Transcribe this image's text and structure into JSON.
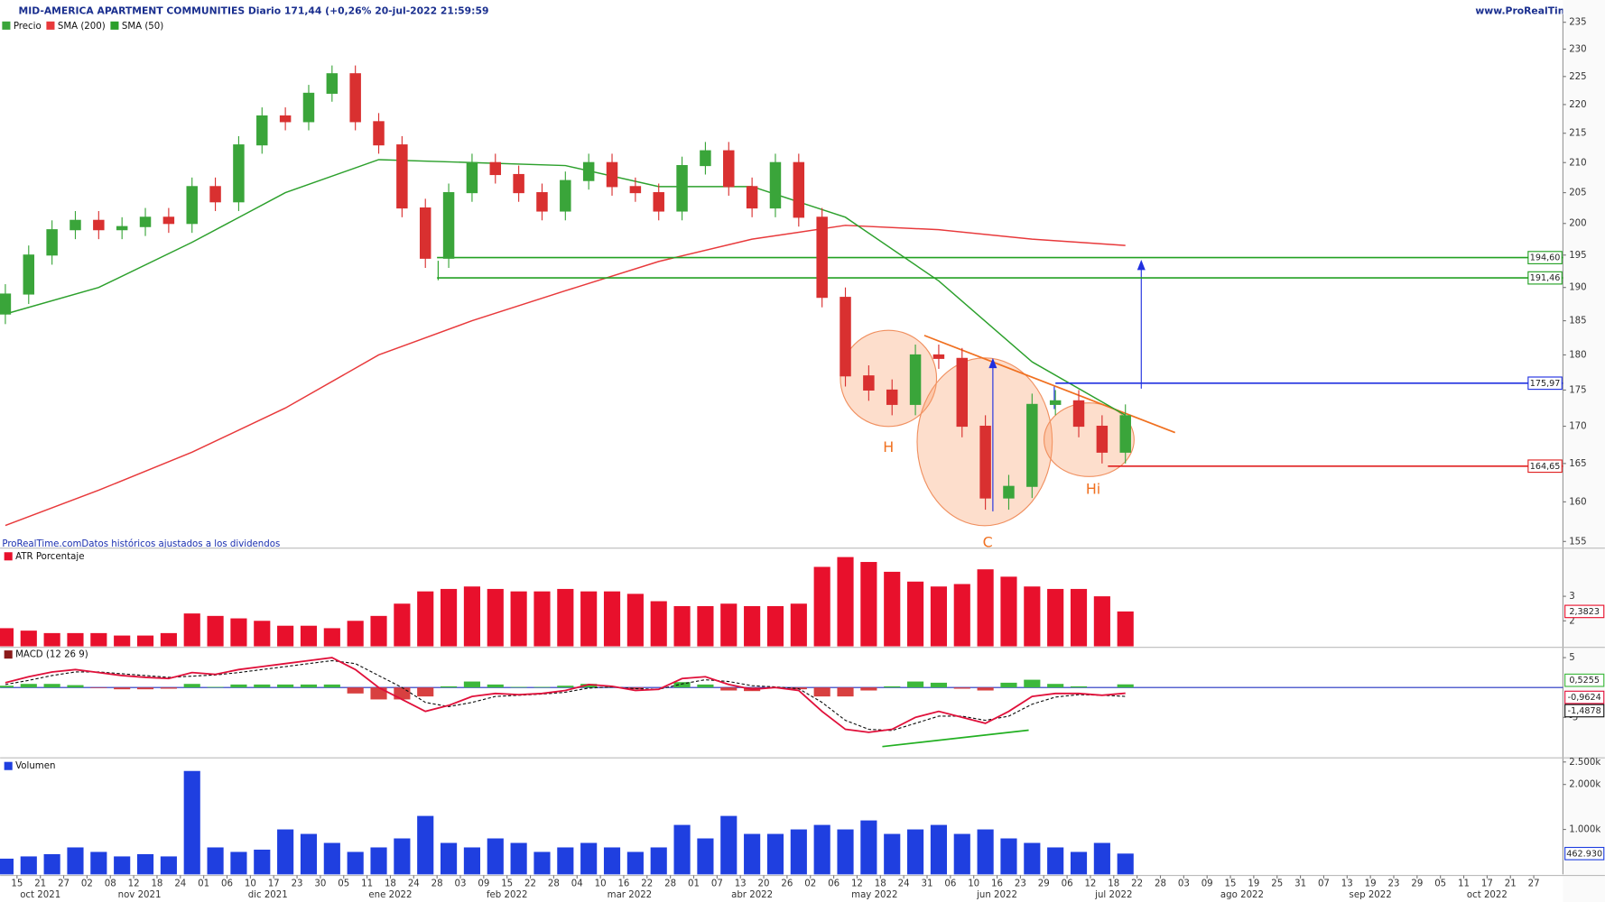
{
  "header": {
    "title": "MID-AMERICA APARTMENT COMMUNITIES Diario 171,44 (+0,26% 20-jul-2022 21:59:59",
    "website": "www.ProRealTime.com"
  },
  "chart_data": [
    {
      "type": "candlestick",
      "price_name": "Precio",
      "price_color": "#3aa53a",
      "up_color": "#3aa53a",
      "down_color": "#d93030",
      "log": true,
      "footnote": "ProRealTime.comDatos históricos ajustados a los dividendos",
      "xlim": [
        -0.9,
        267
      ],
      "ylim": [
        154.3,
        236.5
      ],
      "yticks": [
        155,
        160,
        165,
        170,
        175,
        180,
        185,
        190,
        195,
        200,
        205,
        210,
        215,
        220,
        225,
        230,
        235
      ],
      "x": [
        0,
        4,
        8,
        12,
        16,
        20,
        24,
        28,
        32,
        36,
        40,
        44,
        48,
        52,
        56,
        60,
        64,
        68,
        72,
        76,
        80,
        84,
        88,
        92,
        96,
        100,
        104,
        108,
        112,
        116,
        120,
        124,
        128,
        132,
        136,
        140,
        144,
        148,
        152,
        156,
        160,
        164,
        168,
        172,
        176,
        180,
        184,
        188,
        192
      ],
      "open": [
        186,
        189,
        195,
        199,
        200.5,
        199,
        199.5,
        201,
        200,
        206,
        203.5,
        213,
        218,
        217,
        222,
        225.5,
        217,
        213,
        202.5,
        194.5,
        205,
        210,
        208,
        205,
        202,
        207,
        210,
        206,
        205,
        202,
        209.5,
        212,
        206,
        202.5,
        210,
        201,
        188.5,
        177,
        175,
        173,
        180,
        179.5,
        170,
        160.5,
        162,
        173,
        173.5,
        170,
        166.5
      ],
      "high": [
        190.5,
        196.5,
        200.5,
        202,
        202,
        201,
        202.5,
        202.5,
        207.5,
        207.5,
        214.5,
        219.5,
        219.5,
        223.5,
        227,
        227,
        218.5,
        214.5,
        204,
        206.5,
        211.5,
        211.5,
        209.5,
        206.5,
        208.5,
        211.5,
        211.5,
        207.5,
        206.5,
        211,
        213.5,
        213.5,
        207.5,
        211.5,
        211.5,
        202.5,
        190,
        178.5,
        176.5,
        181.5,
        181.5,
        181,
        171.5,
        163.5,
        174.5,
        175,
        175,
        171.5,
        173
      ],
      "low": [
        184.5,
        187.5,
        193.5,
        197.5,
        197.5,
        197.5,
        198,
        198.5,
        198.5,
        202,
        202,
        211.5,
        215.5,
        215.5,
        220.5,
        215.5,
        211.5,
        201,
        193,
        193,
        203.5,
        206.5,
        203.5,
        200.5,
        200.5,
        205.5,
        204.5,
        203.5,
        200.5,
        200.5,
        208,
        204.5,
        201,
        201,
        199.5,
        187,
        175.5,
        173.5,
        171.5,
        171.5,
        178,
        168.5,
        159,
        159,
        160.5,
        171.5,
        168.5,
        165,
        165
      ],
      "close": [
        189,
        195,
        199,
        200.5,
        199,
        199.5,
        201,
        200,
        206,
        203.5,
        213,
        218,
        217,
        222,
        225.5,
        217,
        213,
        202.5,
        194.5,
        205,
        210,
        208,
        205,
        202,
        207,
        210,
        206,
        205,
        202,
        209.5,
        212,
        206,
        202.5,
        210,
        201,
        188.5,
        177,
        175,
        173,
        180,
        179.5,
        170,
        160.5,
        162,
        173,
        173.5,
        170,
        166.5,
        171.44
      ],
      "series": [
        {
          "name": "SMA (200)",
          "color": "#e8393b",
          "x": [
            0,
            16,
            32,
            48,
            64,
            80,
            96,
            112,
            128,
            144,
            160,
            176,
            192
          ],
          "values": [
            157,
            161.5,
            166.5,
            172.5,
            180,
            185,
            189.5,
            194,
            197.5,
            199.7,
            199,
            197.5,
            196.5
          ]
        },
        {
          "name": "SMA (50)",
          "color": "#2ca02c",
          "x": [
            0,
            16,
            32,
            48,
            64,
            80,
            96,
            112,
            128,
            144,
            160,
            176,
            192
          ],
          "values": [
            186,
            190,
            197,
            205,
            210.5,
            210,
            209.5,
            206,
            206,
            201,
            191,
            179,
            171.5
          ]
        }
      ],
      "levels": [
        {
          "value": 194.6,
          "label": "194,60",
          "color": "#22a022",
          "x_start": 74
        },
        {
          "value": 191.46,
          "label": "191,46",
          "color": "#22a022",
          "x_start": 74
        },
        {
          "value": 175.97,
          "label": "175,97",
          "color": "#2030e0",
          "x_start": 180
        },
        {
          "value": 164.65,
          "label": "164,65",
          "color": "#e02020",
          "x_start": 189
        }
      ],
      "annotations": [
        "H",
        "C",
        "Hi"
      ]
    },
    {
      "type": "bar",
      "title": "ATR Porcentaje",
      "color": "#e8102c",
      "ylim": [
        0.96,
        4.88
      ],
      "yticks": [
        2,
        3
      ],
      "values": [
        1.7,
        1.6,
        1.5,
        1.5,
        1.5,
        1.4,
        1.4,
        1.5,
        2.3,
        2.2,
        2.1,
        2.0,
        1.8,
        1.8,
        1.7,
        2.0,
        2.2,
        2.7,
        3.2,
        3.3,
        3.4,
        3.3,
        3.2,
        3.2,
        3.3,
        3.2,
        3.2,
        3.1,
        2.8,
        2.6,
        2.6,
        2.7,
        2.6,
        2.6,
        2.7,
        4.2,
        4.6,
        4.4,
        4.0,
        3.6,
        3.4,
        3.5,
        4.1,
        3.8,
        3.4,
        3.3,
        3.3,
        3.0,
        2.3823
      ],
      "last_value_label": "2,3823"
    },
    {
      "type": "macd",
      "title": "MACD (12 26 9)",
      "title_color": "#8b1a1a",
      "ylim": [
        -11.6,
        6.55
      ],
      "yticks": [
        -5,
        5
      ],
      "zero_color": "#2030c0",
      "histogram": {
        "up_color": "#3cb83c",
        "down_color": "#d84040",
        "values": [
          0.3,
          0.6,
          0.6,
          0.4,
          -0.1,
          -0.3,
          -0.3,
          -0.2,
          0.6,
          0.1,
          0.5,
          0.5,
          0.5,
          0.5,
          0.5,
          -1.0,
          -2.0,
          -2.0,
          -1.5,
          0.2,
          1.0,
          0.5,
          0.1,
          0.1,
          0.3,
          0.6,
          0.1,
          -0.3,
          0.0,
          0.9,
          0.5,
          -0.5,
          -0.6,
          -0.1,
          -0.3,
          -1.5,
          -1.5,
          -0.5,
          0.2,
          1.0,
          0.8,
          -0.2,
          -0.5,
          0.8,
          1.3,
          0.6,
          0.2,
          0.0,
          0.5255
        ],
        "last_value_label": "0,5255"
      },
      "macd": {
        "color": "#e0103a",
        "values": [
          0.8,
          1.8,
          2.6,
          3.0,
          2.5,
          2.0,
          1.7,
          1.5,
          2.5,
          2.2,
          3.0,
          3.5,
          4.0,
          4.5,
          5.0,
          3.0,
          0,
          -2,
          -4,
          -3,
          -1.5,
          -1,
          -1.2,
          -1,
          -0.5,
          0.5,
          0.2,
          -0.5,
          -0.3,
          1.5,
          1.8,
          0.5,
          -0.3,
          0,
          -0.5,
          -4,
          -7,
          -7.5,
          -7,
          -5,
          -4,
          -5,
          -6,
          -4,
          -1.5,
          -1,
          -1,
          -1.3,
          -0.9624
        ],
        "last_value_label": "-0,9624"
      },
      "signal": {
        "color": "#111111",
        "values": [
          0.5,
          1.2,
          2.0,
          2.6,
          2.6,
          2.3,
          2.0,
          1.7,
          1.9,
          2.1,
          2.5,
          3.0,
          3.5,
          4.0,
          4.5,
          4.0,
          2.0,
          0,
          -2.5,
          -3.2,
          -2.5,
          -1.5,
          -1.3,
          -1.1,
          -0.8,
          -0.1,
          0.1,
          -0.2,
          -0.3,
          0.6,
          1.3,
          1.0,
          0.3,
          0.1,
          -0.2,
          -2.5,
          -5.5,
          -7.0,
          -7.2,
          -6.0,
          -4.8,
          -4.8,
          -5.5,
          -4.8,
          -2.8,
          -1.6,
          -1.2,
          -1.3,
          -1.4878
        ],
        "last_value_label": "-1,4878"
      }
    },
    {
      "type": "bar",
      "title": "Volumen",
      "color": "#1f3fe0",
      "ylim": [
        0,
        2570000
      ],
      "yticks": [
        {
          "value": 1000000,
          "label": "1.000k"
        },
        {
          "value": 2000000,
          "label": "2.000k"
        },
        {
          "value": 2500000,
          "label": "2.500k"
        }
      ],
      "values": [
        350000,
        400000,
        450000,
        600000,
        500000,
        400000,
        450000,
        400000,
        2300000,
        600000,
        500000,
        550000,
        1000000,
        900000,
        700000,
        500000,
        600000,
        800000,
        1300000,
        700000,
        600000,
        800000,
        700000,
        500000,
        600000,
        700000,
        600000,
        500000,
        600000,
        1100000,
        800000,
        1300000,
        900000,
        900000,
        1000000,
        1100000,
        1000000,
        1200000,
        900000,
        1000000,
        1100000,
        900000,
        1000000,
        800000,
        700000,
        600000,
        500000,
        700000,
        462930
      ],
      "last_value_label": "462.930",
      "xticks": [
        {
          "value": 2,
          "label": "15"
        },
        {
          "value": 6,
          "label": "21"
        },
        {
          "value": 10,
          "label": "27"
        },
        {
          "value": 14,
          "label": "02"
        },
        {
          "value": 18,
          "label": "08"
        },
        {
          "value": 22,
          "label": "12"
        },
        {
          "value": 26,
          "label": "18"
        },
        {
          "value": 30,
          "label": "24"
        },
        {
          "value": 34,
          "label": "01"
        },
        {
          "value": 38,
          "label": "06"
        },
        {
          "value": 42,
          "label": "10"
        },
        {
          "value": 46,
          "label": "17"
        },
        {
          "value": 50,
          "label": "23"
        },
        {
          "value": 54,
          "label": "30"
        },
        {
          "value": 58,
          "label": "05"
        },
        {
          "value": 62,
          "label": "11"
        },
        {
          "value": 66,
          "label": "18"
        },
        {
          "value": 70,
          "label": "24"
        },
        {
          "value": 74,
          "label": "28"
        },
        {
          "value": 78,
          "label": "03"
        },
        {
          "value": 82,
          "label": "09"
        },
        {
          "value": 86,
          "label": "15"
        },
        {
          "value": 90,
          "label": "22"
        },
        {
          "value": 94,
          "label": "28"
        },
        {
          "value": 98,
          "label": "04"
        },
        {
          "value": 102,
          "label": "10"
        },
        {
          "value": 106,
          "label": "16"
        },
        {
          "value": 110,
          "label": "22"
        },
        {
          "value": 114,
          "label": "28"
        },
        {
          "value": 118,
          "label": "01"
        },
        {
          "value": 122,
          "label": "07"
        },
        {
          "value": 126,
          "label": "13"
        },
        {
          "value": 130,
          "label": "20"
        },
        {
          "value": 134,
          "label": "26"
        },
        {
          "value": 138,
          "label": "02"
        },
        {
          "value": 142,
          "label": "06"
        },
        {
          "value": 146,
          "label": "12"
        },
        {
          "value": 150,
          "label": "18"
        },
        {
          "value": 154,
          "label": "24"
        },
        {
          "value": 158,
          "label": "31"
        },
        {
          "value": 162,
          "label": "06"
        },
        {
          "value": 166,
          "label": "10"
        },
        {
          "value": 170,
          "label": "16"
        },
        {
          "value": 174,
          "label": "23"
        },
        {
          "value": 178,
          "label": "29"
        },
        {
          "value": 182,
          "label": "06"
        },
        {
          "value": 186,
          "label": "12"
        },
        {
          "value": 190,
          "label": "18"
        },
        {
          "value": 194,
          "label": "22"
        },
        {
          "value": 198,
          "label": "28"
        },
        {
          "value": 202,
          "label": "03"
        },
        {
          "value": 206,
          "label": "09"
        },
        {
          "value": 210,
          "label": "15"
        },
        {
          "value": 214,
          "label": "19"
        },
        {
          "value": 218,
          "label": "25"
        },
        {
          "value": 222,
          "label": "31"
        },
        {
          "value": 226,
          "label": "07"
        },
        {
          "value": 230,
          "label": "13"
        },
        {
          "value": 234,
          "label": "19"
        },
        {
          "value": 238,
          "label": "23"
        },
        {
          "value": 242,
          "label": "29"
        },
        {
          "value": 246,
          "label": "05"
        },
        {
          "value": 250,
          "label": "11"
        },
        {
          "value": 254,
          "label": "17"
        },
        {
          "value": 258,
          "label": "21"
        },
        {
          "value": 262,
          "label": "27"
        }
      ],
      "month_ticks": [
        {
          "value": 6,
          "label": "oct 2021"
        },
        {
          "value": 23,
          "label": "nov 2021"
        },
        {
          "value": 45,
          "label": "dic 2021"
        },
        {
          "value": 66,
          "label": "ene 2022"
        },
        {
          "value": 86,
          "label": "feb 2022"
        },
        {
          "value": 107,
          "label": "mar 2022"
        },
        {
          "value": 128,
          "label": "abr 2022"
        },
        {
          "value": 149,
          "label": "may 2022"
        },
        {
          "value": 170,
          "label": "jun 2022"
        },
        {
          "value": 190,
          "label": "jul 2022"
        },
        {
          "value": 212,
          "label": "ago 2022"
        },
        {
          "value": 234,
          "label": "sep 2022"
        },
        {
          "value": 254,
          "label": "oct 2022"
        }
      ]
    }
  ]
}
